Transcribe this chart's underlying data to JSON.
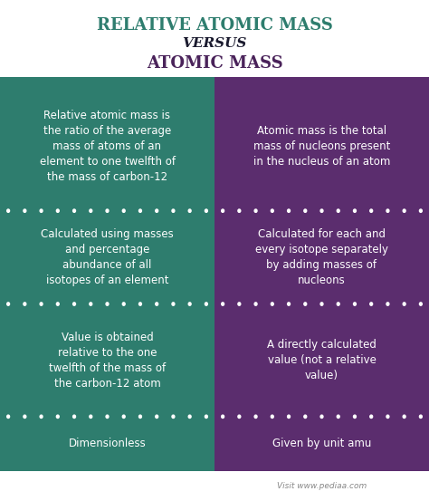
{
  "title_line1": "RELATIVE ATOMIC MASS",
  "title_line2": "VERSUS",
  "title_line3": "ATOMIC MASS",
  "title_color1": "#2e7d6e",
  "title_color2": "#1a1a2e",
  "title_color3": "#4a235a",
  "bg_color": "#ffffff",
  "left_bg": "#2e7d6e",
  "right_bg": "#5b2d6e",
  "left_texts": [
    "Relative atomic mass is\nthe ratio of the average\nmass of atoms of an\nelement to one twelfth of\nthe mass of carbon-12",
    "Calculated using masses\nand percentage\nabundance of all\nisotopes of an element",
    "Value is obtained\nrelative to the one\ntwelfth of the mass of\nthe carbon-12 atom",
    "Dimensionless"
  ],
  "right_texts": [
    "Atomic mass is the total\nmass of nucleons present\nin the nucleus of an atom",
    "Calculated for each and\nevery isotope separately\nby adding masses of\nnucleons",
    "A directly calculated\nvalue (not a relative\nvalue)",
    "Given by unit amu"
  ],
  "text_color": "#ffffff",
  "watermark": "Visit www.pediaa.com",
  "watermark_color": "#888888",
  "dot_color": "#ffffff",
  "header_bar_left": "#2e7d6e",
  "header_bar_right": "#5b2d6e"
}
